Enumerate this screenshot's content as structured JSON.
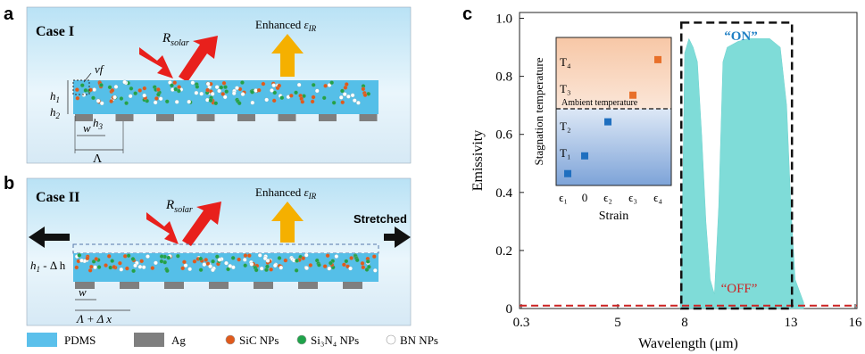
{
  "panels": {
    "a": {
      "label": "a",
      "case": "Case I",
      "r_solar": "R",
      "r_solar_sub": "solar",
      "enhanced": "Enhanced ",
      "eps": "ε",
      "eps_sub": "IR",
      "vf": "vf",
      "h1": "h",
      "h1_sub": "1",
      "h2": "h",
      "h2_sub": "2",
      "h3": "h",
      "h3_sub": "3",
      "w": "w",
      "lambda": "Λ"
    },
    "b": {
      "label": "b",
      "case": "Case II",
      "r_solar": "R",
      "r_solar_sub": "solar",
      "enhanced": "Enhanced ",
      "eps": "ε",
      "eps_sub": "IR",
      "stretched": "Stretched",
      "h1dh": "h",
      "h1dh_sub": "1",
      "h1dh_rest": " - Δ h",
      "w": "w",
      "lambda_dx": "Λ + Δ x"
    },
    "c": {
      "label": "c"
    }
  },
  "legend": [
    {
      "text": "PDMS",
      "color": "#5bc0eb"
    },
    {
      "text": "Ag",
      "color": "#7f7f7f"
    },
    {
      "text": "SiC NPs",
      "color": "#e05a1c"
    },
    {
      "text": "Si₃N₄ NPs",
      "color": "#1fa34a"
    },
    {
      "text": "BN NPs",
      "color": "#ffffff"
    }
  ],
  "chart_data": [
    {
      "type": "area",
      "xlabel": "Wavelength (μm)",
      "ylabel": "Emissivity",
      "x_ticks": [
        "0.3",
        "5",
        "8",
        "13",
        "16"
      ],
      "y_ticks": [
        "0",
        "0.2",
        "0.4",
        "0.6",
        "0.8",
        "1.0"
      ],
      "ylim": [
        0,
        1.02
      ],
      "annotation_on": "“ON”",
      "annotation_off": "“OFF”",
      "series_on": {
        "color": "#7fdcd8",
        "x": [
          7.8,
          7.9,
          8.0,
          8.2,
          8.4,
          8.6,
          8.8,
          9.0,
          9.2,
          9.4,
          9.6,
          9.8,
          10.0,
          10.5,
          11.0,
          11.5,
          12.0,
          12.5,
          12.8,
          13.0,
          13.2,
          13.4,
          13.6
        ],
        "y": [
          0.02,
          0.35,
          0.88,
          0.93,
          0.9,
          0.85,
          0.6,
          0.3,
          0.1,
          0.05,
          0.35,
          0.85,
          0.9,
          0.92,
          0.93,
          0.93,
          0.93,
          0.9,
          0.7,
          0.35,
          0.1,
          0.06,
          0.02
        ]
      },
      "series_off": {
        "color": "#cc2222",
        "value": 0.01
      }
    },
    {
      "type": "scatter",
      "xlabel": "Strain",
      "ylabel": "Stagnation temperature",
      "x_ticks": [
        "ϵ₁",
        "0",
        "ϵ₂",
        "ϵ₃",
        "ϵ₄"
      ],
      "y_ticks": [
        "T₁",
        "T₂",
        "T₃",
        "T₄"
      ],
      "ambient_label": "Ambient temperature",
      "points": [
        {
          "x": "ϵ₁",
          "y": 0.08,
          "color": "#1f6fbf"
        },
        {
          "x": "0",
          "y": 0.2,
          "color": "#1f6fbf"
        },
        {
          "x": "ϵ₂",
          "y": 0.43,
          "color": "#1f6fbf"
        },
        {
          "x": "ϵ₃",
          "y": 0.61,
          "color": "#e8702a"
        },
        {
          "x": "ϵ₄",
          "y": 0.85,
          "color": "#e8702a"
        }
      ]
    }
  ]
}
